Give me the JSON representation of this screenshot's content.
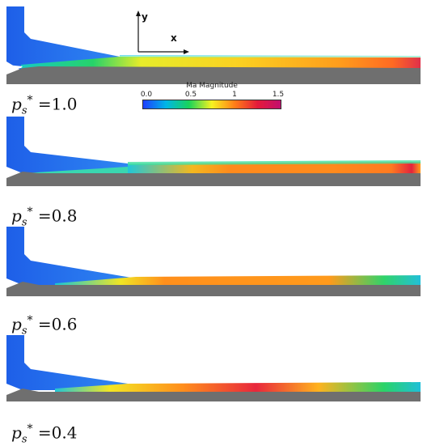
{
  "colorbar": {
    "title": "Ma Magnitude",
    "ticks": [
      "0.0",
      "0.5",
      "1",
      "1.5"
    ],
    "colors": [
      "#1f3fff",
      "#00b6e6",
      "#19d35a",
      "#f7f220",
      "#ff7d18",
      "#e41a3a",
      "#c20f6e"
    ]
  },
  "axes": {
    "y_label": "y",
    "x_label": "x"
  },
  "panels": [
    {
      "symbol": "p",
      "subscript": "s",
      "superscript": "*",
      "equals": "=",
      "value": "1.0"
    },
    {
      "symbol": "p",
      "subscript": "s",
      "superscript": "*",
      "equals": "=",
      "value": "0.8"
    },
    {
      "symbol": "p",
      "subscript": "s",
      "superscript": "*",
      "equals": "=",
      "value": "0.6"
    },
    {
      "symbol": "p",
      "subscript": "s",
      "superscript": "*",
      "equals": "=",
      "value": "0.4"
    }
  ],
  "colors": {
    "wall": "#6f6f6f",
    "inlet": "#2a6cf0",
    "jet_core": "#ff9a1a",
    "jet_hot": "#e8243a"
  }
}
